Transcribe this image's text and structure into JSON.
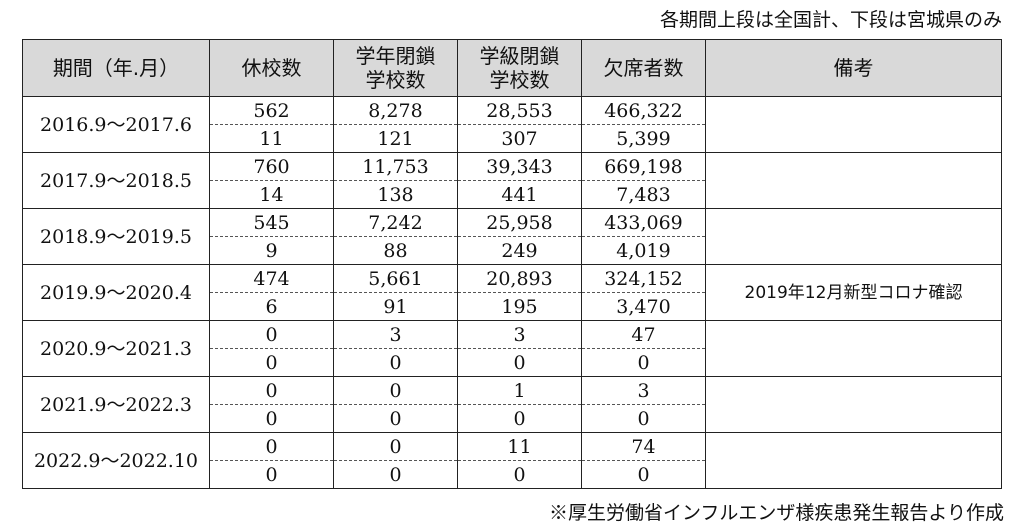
{
  "header_note": "各期間上段は全国計、下段は宮城県のみ",
  "footer_note": "※厚生労働省インフルエンザ様疾患発生報告より作成",
  "columns": {
    "period": "期間（年.月）",
    "closed_schools": "休校数",
    "grade_closures": "学年閉鎖\n学校数",
    "class_closures": "学級閉鎖\n学校数",
    "absentees": "欠席者数",
    "remarks": "備考"
  },
  "rows": [
    {
      "period": "2016.9～2017.6",
      "national": {
        "closed": "562",
        "grade": "8,278",
        "class": "28,553",
        "absent": "466,322"
      },
      "miyagi": {
        "closed": "11",
        "grade": "121",
        "class": "307",
        "absent": "5,399"
      },
      "remark": ""
    },
    {
      "period": "2017.9～2018.5",
      "national": {
        "closed": "760",
        "grade": "11,753",
        "class": "39,343",
        "absent": "669,198"
      },
      "miyagi": {
        "closed": "14",
        "grade": "138",
        "class": "441",
        "absent": "7,483"
      },
      "remark": ""
    },
    {
      "period": "2018.9～2019.5",
      "national": {
        "closed": "545",
        "grade": "7,242",
        "class": "25,958",
        "absent": "433,069"
      },
      "miyagi": {
        "closed": "9",
        "grade": "88",
        "class": "249",
        "absent": "4,019"
      },
      "remark": ""
    },
    {
      "period": "2019.9～2020.4",
      "national": {
        "closed": "474",
        "grade": "5,661",
        "class": "20,893",
        "absent": "324,152"
      },
      "miyagi": {
        "closed": "6",
        "grade": "91",
        "class": "195",
        "absent": "3,470"
      },
      "remark": "2019年12月新型コロナ確認"
    },
    {
      "period": "2020.9～2021.3",
      "national": {
        "closed": "0",
        "grade": "3",
        "class": "3",
        "absent": "47"
      },
      "miyagi": {
        "closed": "0",
        "grade": "0",
        "class": "0",
        "absent": "0"
      },
      "remark": ""
    },
    {
      "period": "2021.9～2022.3",
      "national": {
        "closed": "0",
        "grade": "0",
        "class": "1",
        "absent": "3"
      },
      "miyagi": {
        "closed": "0",
        "grade": "0",
        "class": "0",
        "absent": "0"
      },
      "remark": ""
    },
    {
      "period": "2022.9～2022.10",
      "national": {
        "closed": "0",
        "grade": "0",
        "class": "11",
        "absent": "74"
      },
      "miyagi": {
        "closed": "0",
        "grade": "0",
        "class": "0",
        "absent": "0"
      },
      "remark": ""
    }
  ]
}
